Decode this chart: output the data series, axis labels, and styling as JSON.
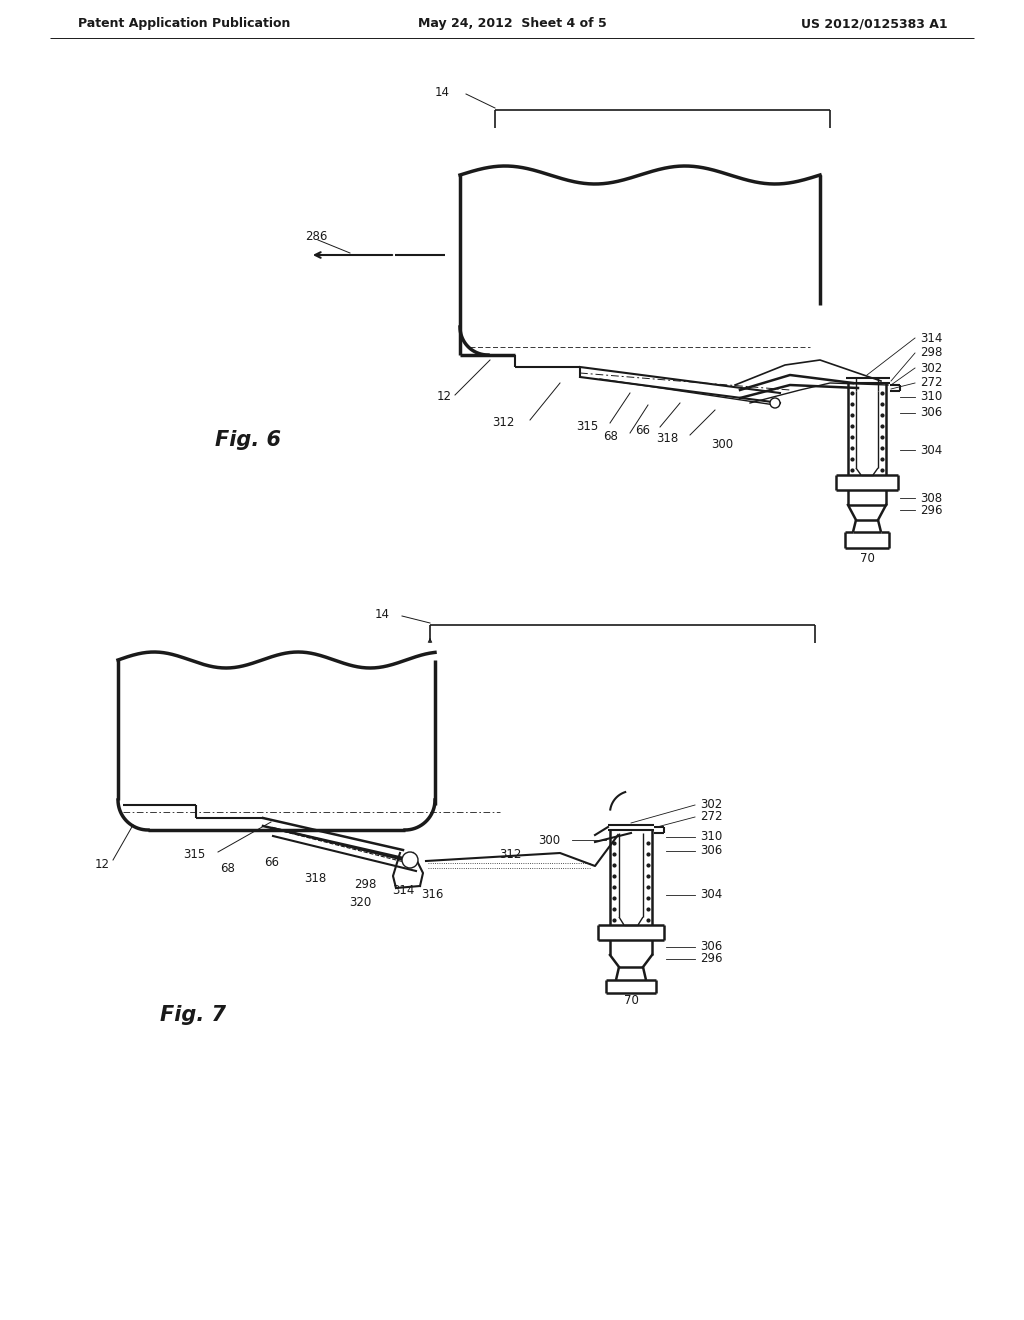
{
  "background_color": "#ffffff",
  "line_color": "#1a1a1a",
  "text_color": "#1a1a1a",
  "header_left": "Patent Application Publication",
  "header_center": "May 24, 2012  Sheet 4 of 5",
  "header_right": "US 2012/0125383 A1",
  "fig6_label": "Fig. 6",
  "fig7_label": "Fig. 7",
  "font_size_header": 9,
  "font_size_fig_label": 15,
  "font_size_ref": 8.5
}
